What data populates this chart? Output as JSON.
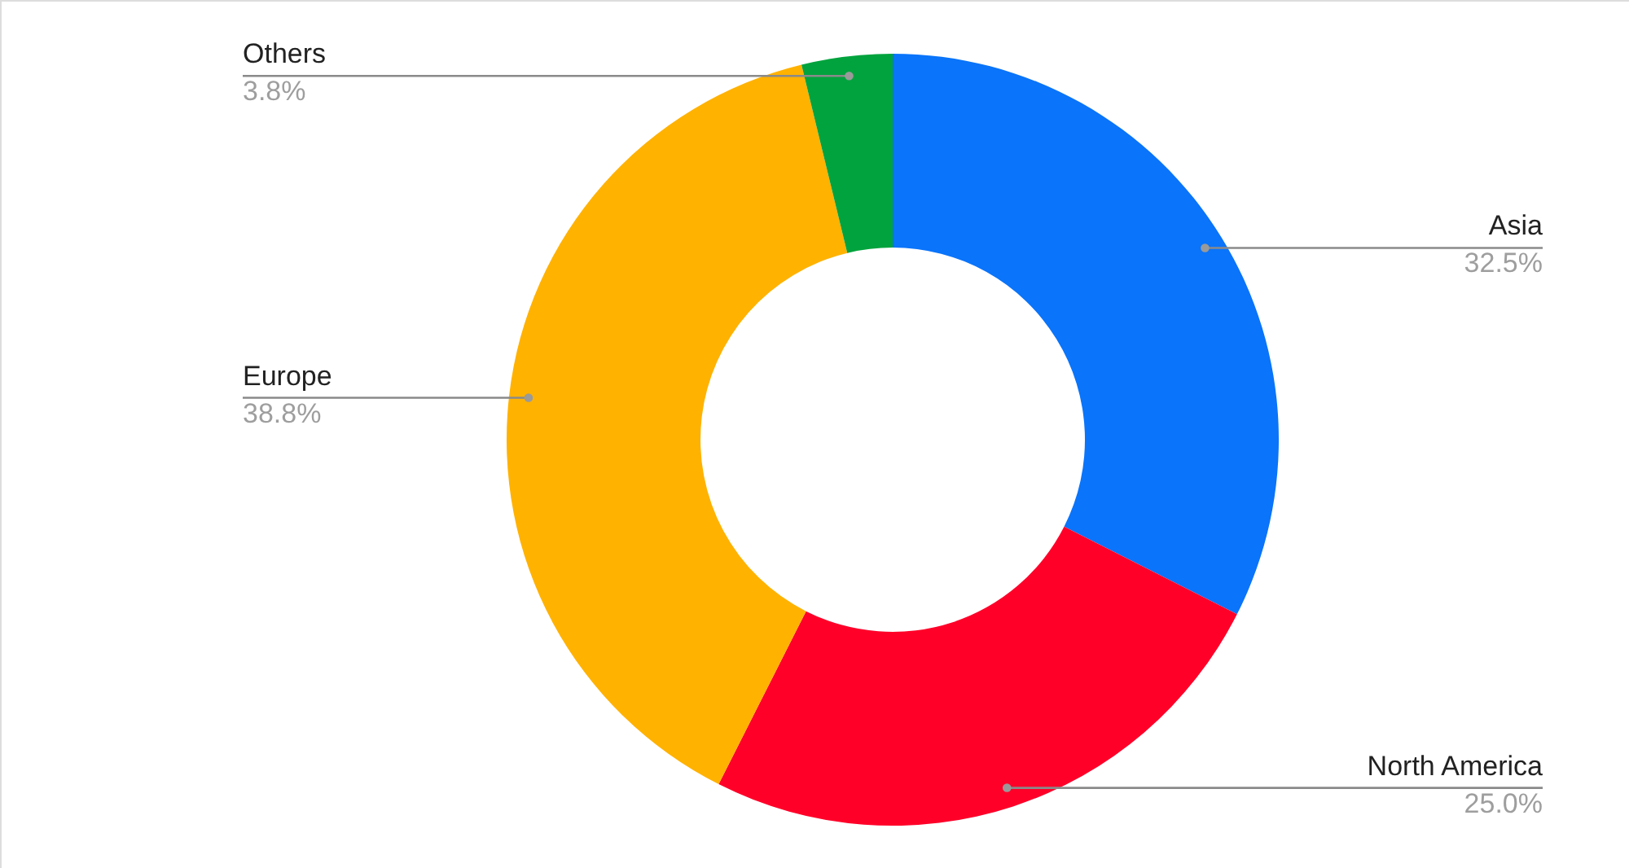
{
  "chart_data": {
    "type": "donut",
    "categories": [
      "Asia",
      "North America",
      "Europe",
      "Others"
    ],
    "values": [
      32.5,
      25.0,
      38.8,
      3.8
    ],
    "value_labels": [
      "32.5%",
      "25.0%",
      "38.8%",
      "3.8%"
    ],
    "colors": [
      "#0a74fa",
      "#ff0029",
      "#ffb200",
      "#00a33d"
    ]
  }
}
